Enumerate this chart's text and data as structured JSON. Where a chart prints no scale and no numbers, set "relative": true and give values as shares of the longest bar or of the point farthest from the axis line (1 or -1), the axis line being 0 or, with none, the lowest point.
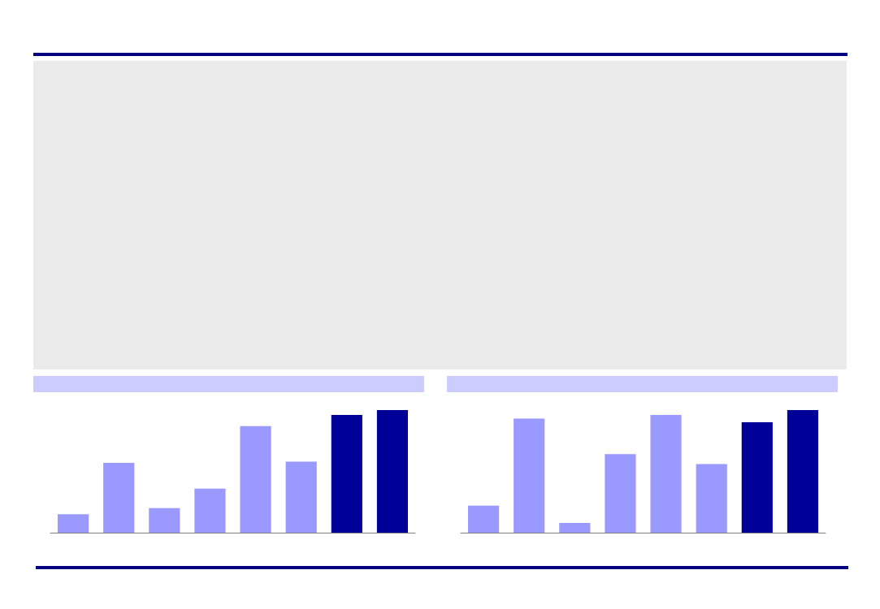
{
  "chart_data": [
    {
      "type": "bar",
      "relative": true,
      "categories": [
        null,
        null,
        null,
        null,
        null,
        null,
        null,
        null
      ],
      "values": [
        0.15,
        0.57,
        0.2,
        0.36,
        0.87,
        0.58,
        0.96,
        1
      ],
      "colors": [
        "#9999ff",
        "#9999ff",
        "#9999ff",
        "#9999ff",
        "#9999ff",
        "#9999ff",
        "#000099",
        "#000099"
      ]
    },
    {
      "type": "bar",
      "relative": true,
      "categories": [
        null,
        null,
        null,
        null,
        null,
        null,
        null,
        null
      ],
      "values": [
        0.22,
        0.93,
        0.08,
        0.64,
        0.96,
        0.56,
        0.9,
        1
      ],
      "colors": [
        "#9999ff",
        "#9999ff",
        "#9999ff",
        "#9999ff",
        "#9999ff",
        "#9999ff",
        "#000099",
        "#000099"
      ]
    }
  ]
}
